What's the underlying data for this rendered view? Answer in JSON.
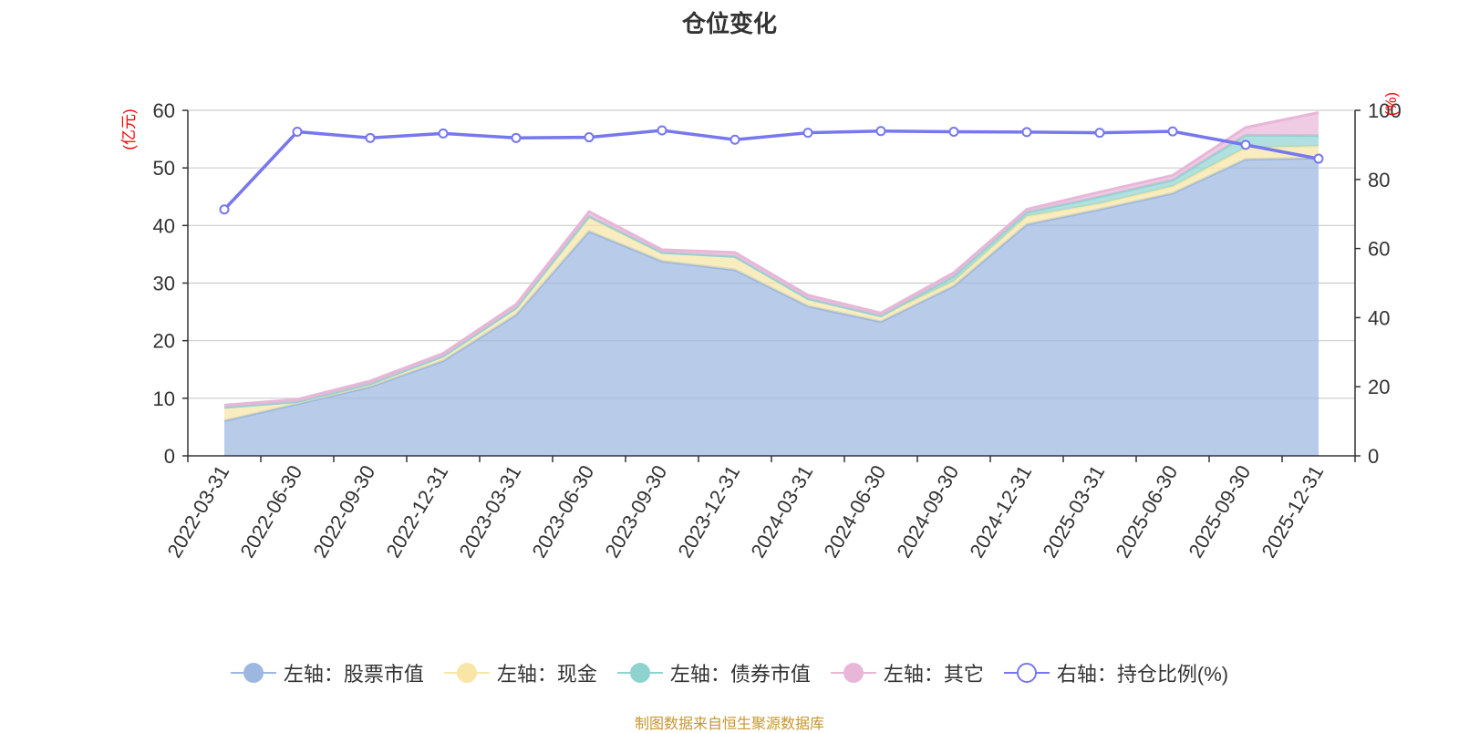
{
  "chart_data": {
    "type": "area",
    "title": "仓位变化",
    "x": [
      "2022-03-31",
      "2022-06-30",
      "2022-09-30",
      "2022-12-31",
      "2023-03-31",
      "2023-06-30",
      "2023-09-30",
      "2023-12-31",
      "2024-03-31",
      "2024-06-30",
      "2024-09-30",
      "2024-12-31",
      "2025-03-31",
      "2025-06-30",
      "2025-09-30",
      "2025-12-31"
    ],
    "y_left": {
      "unit_label": "(亿元)",
      "ylim": [
        0,
        60
      ],
      "ticks": [
        "0",
        "10",
        "20",
        "30",
        "40",
        "50",
        "60"
      ]
    },
    "y_right": {
      "unit_label": "(%)",
      "ylim": [
        0,
        100
      ],
      "ticks": [
        "0",
        "20",
        "40",
        "60",
        "80",
        "100"
      ]
    },
    "stacked": true,
    "series": [
      {
        "name": "左轴：股票市值",
        "axis": "left",
        "color": "#9cb7e0",
        "values": [
          6.1,
          9.0,
          12.0,
          16.5,
          24.5,
          39.0,
          33.8,
          32.3,
          26.0,
          23.3,
          29.5,
          40.2,
          42.8,
          45.6,
          51.5,
          51.7
        ]
      },
      {
        "name": "左轴：现金",
        "axis": "left",
        "color": "#f7e6a5",
        "values": [
          2.3,
          0.4,
          0.5,
          0.8,
          1.2,
          2.4,
          1.5,
          2.3,
          1.3,
          1.0,
          0.8,
          1.4,
          1.0,
          1.2,
          2.0,
          2.1
        ]
      },
      {
        "name": "左轴：债券市值",
        "axis": "left",
        "color": "#8fd3d1",
        "values": [
          0.0,
          0.0,
          0.0,
          0.0,
          0.0,
          0.2,
          0.0,
          0.0,
          0.0,
          0.0,
          0.9,
          0.7,
          1.2,
          1.1,
          2.2,
          1.8
        ]
      },
      {
        "name": "左轴：其它",
        "axis": "left",
        "color": "#e8b6d7",
        "values": [
          0.4,
          0.4,
          0.5,
          0.5,
          0.6,
          0.8,
          0.5,
          0.7,
          0.6,
          0.5,
          0.6,
          0.5,
          0.8,
          0.8,
          1.3,
          4.0
        ]
      },
      {
        "name": "右轴：持仓比例(%)",
        "axis": "right",
        "color": "#7777ee",
        "type": "line",
        "values": [
          71.3,
          93.8,
          92.0,
          93.3,
          92.0,
          92.2,
          94.2,
          91.5,
          93.5,
          94.0,
          93.8,
          93.7,
          93.5,
          93.9,
          90.0,
          86.0
        ]
      }
    ],
    "grid": true,
    "legend_position": "bottom-center",
    "source_note": "制图数据来自恒生聚源数据库"
  }
}
